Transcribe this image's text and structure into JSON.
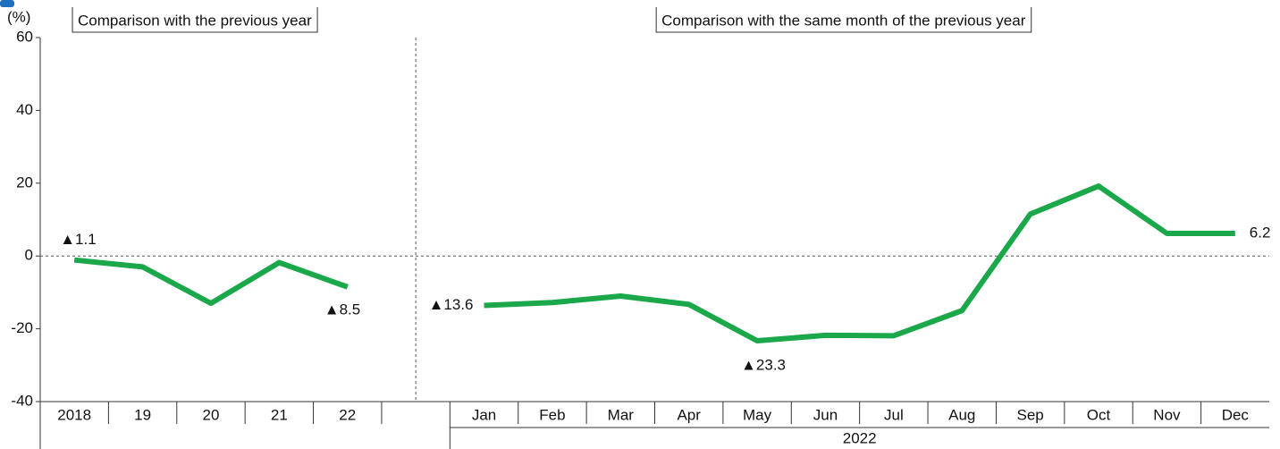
{
  "chart_data": {
    "type": "line",
    "y_label": "(%)",
    "panel_labels": [
      "Comparison with the previous year",
      "Comparison with the same month of the previous year"
    ],
    "categories": [
      "2018",
      "19",
      "20",
      "21",
      "22",
      null,
      "Jan",
      "Feb",
      "Mar",
      "Apr",
      "May",
      "Jun",
      "Jul",
      "Aug",
      "Sep",
      "Oct",
      "Nov",
      "Dec"
    ],
    "x_group_label": "2022",
    "series": [
      {
        "color": "#1aa84a",
        "values": [
          -1.1,
          -3,
          -13,
          -1.8,
          -8.5,
          null,
          -13.6,
          -12.8,
          -11,
          -13.3,
          -23.3,
          -21.8,
          -21.9,
          -15,
          11.5,
          19.2,
          6.2,
          6.2
        ],
        "value_labels": [
          "▲1.1",
          null,
          null,
          null,
          "▲8.5",
          null,
          "▲13.6",
          null,
          null,
          null,
          "▲23.3",
          null,
          null,
          null,
          null,
          null,
          null,
          "6.2"
        ]
      }
    ],
    "ylim": [
      -40,
      60
    ],
    "yticks": [
      -40,
      -20,
      0,
      20,
      40,
      60
    ]
  }
}
